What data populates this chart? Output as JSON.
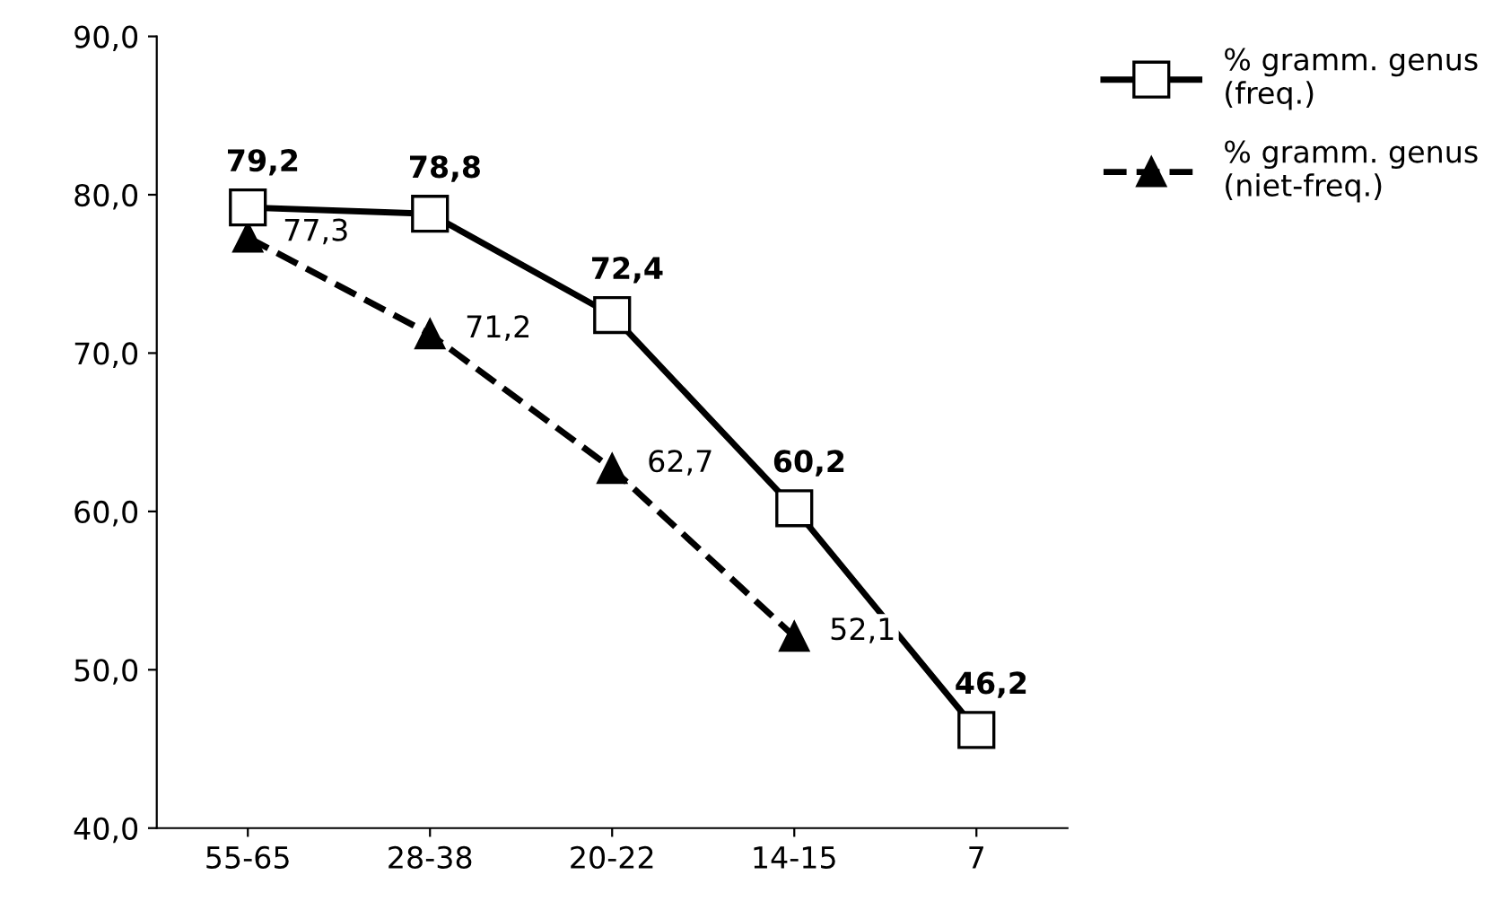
{
  "chart_data": {
    "type": "line",
    "categories": [
      "55-65",
      "28-38",
      "20-22",
      "14-15",
      "7"
    ],
    "series": [
      {
        "name": "% gramm. genus (freq.)",
        "color": "#000000",
        "marker": "square",
        "line_style": "solid",
        "values": [
          79.2,
          78.8,
          72.4,
          60.2,
          46.2
        ],
        "value_labels": [
          "79,2",
          "78,8",
          "72,4",
          "60,2",
          "46,2"
        ]
      },
      {
        "name": "% gramm. genus (niet-freq.)",
        "color": "#000000",
        "marker": "triangle",
        "line_style": "dashed",
        "values": [
          77.3,
          71.2,
          62.7,
          52.1,
          null
        ],
        "value_labels": [
          "77,3",
          "71,2",
          "62,7",
          "52,1",
          null
        ]
      }
    ],
    "ylim": [
      40,
      90
    ],
    "yticks": [
      {
        "value": 40,
        "label": "40,0"
      },
      {
        "value": 50,
        "label": "50,0"
      },
      {
        "value": 60,
        "label": "60,0"
      },
      {
        "value": 70,
        "label": "70,0"
      },
      {
        "value": 80,
        "label": "80,0"
      },
      {
        "value": 90,
        "label": "90,0"
      }
    ],
    "grid": false,
    "legend": "top right"
  }
}
